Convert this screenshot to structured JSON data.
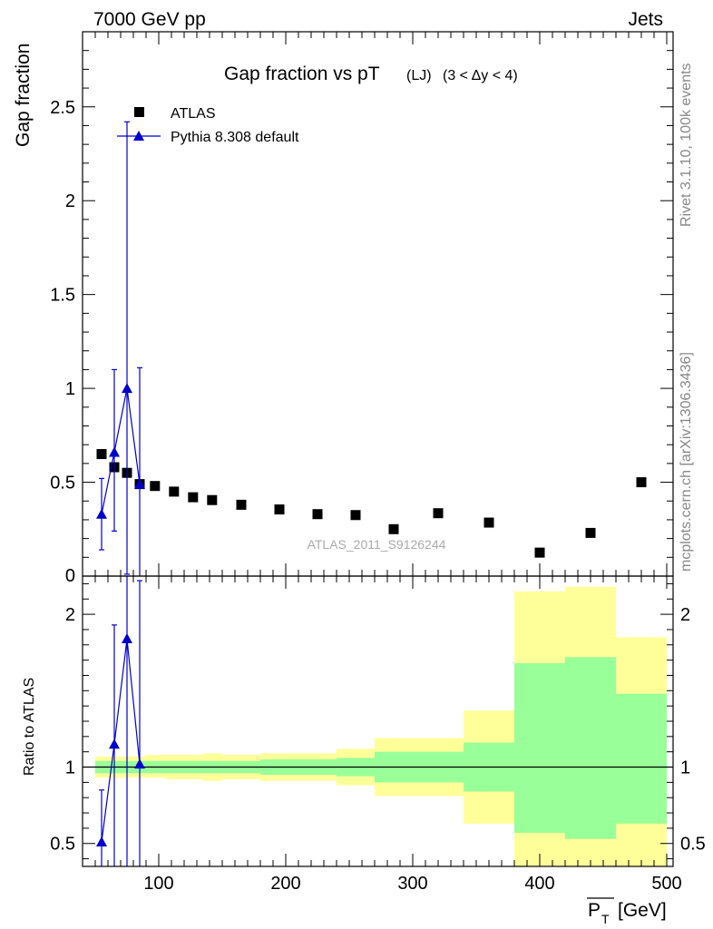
{
  "header": {
    "energy_label": "7000 GeV pp",
    "process_label": "Jets"
  },
  "side_labels": {
    "rivet": "Rivet 3.1.10,  100k events",
    "mcplots": "mcplots.cern.ch [arXiv:1306.3436]"
  },
  "chart_data": [
    {
      "type": "scatter",
      "title": "Gap fraction vs pT",
      "title_sub": "(LJ)",
      "title_range": "(3 < Δy < 4)",
      "ylabel": "Gap fraction",
      "xlim": [
        40,
        505
      ],
      "ylim": [
        0,
        2.9
      ],
      "yticks": [
        0.5,
        1,
        1.5,
        2,
        2.5
      ],
      "yticklabels": [
        "0.5",
        "1",
        "1.5",
        "2",
        "2.5"
      ],
      "y_zero_label": "0",
      "watermark": "ATLAS_2011_S9126244",
      "legend_position": "top-left",
      "series": [
        {
          "name": "ATLAS",
          "marker": "square",
          "color": "#000000",
          "x": [
            55,
            65,
            75,
            85,
            97,
            112,
            127,
            142,
            165,
            195,
            225,
            255,
            285,
            320,
            360,
            400,
            440,
            480
          ],
          "y": [
            0.65,
            0.58,
            0.55,
            0.49,
            0.48,
            0.45,
            0.42,
            0.405,
            0.38,
            0.355,
            0.33,
            0.325,
            0.25,
            0.335,
            0.285,
            0.125,
            0.23,
            0.5
          ]
        },
        {
          "name": "Pythia 8.308 default",
          "marker": "triangle",
          "color": "#0000cc",
          "x": [
            55,
            65,
            75,
            85
          ],
          "y": [
            0.33,
            0.66,
            1.0,
            0.49
          ],
          "err_low": [
            0.19,
            0.42,
            0.99,
            0.49
          ],
          "err_high": [
            0.19,
            0.44,
            1.42,
            0.62
          ]
        }
      ]
    },
    {
      "type": "area",
      "ylabel": "Ratio to ATLAS",
      "xlabel_main": "P",
      "xlabel_sub": "T",
      "xlabel_unit": "[GeV]",
      "xlim": [
        40,
        505
      ],
      "ylim": [
        0.35,
        2.25
      ],
      "xticks": [
        100,
        200,
        300,
        400,
        500
      ],
      "xticklabels": [
        "100",
        "200",
        "300",
        "400",
        "500"
      ],
      "yticks": [
        0.5,
        1,
        2
      ],
      "yticklabels": [
        "0.5",
        "1",
        "2"
      ],
      "reference_line": 1,
      "bands": {
        "bin_edges": [
          50,
          60,
          70,
          80,
          90,
          105,
          120,
          135,
          150,
          180,
          210,
          240,
          270,
          300,
          340,
          380,
          420,
          460,
          500
        ],
        "yellow_low": [
          0.93,
          0.93,
          0.93,
          0.93,
          0.93,
          0.92,
          0.92,
          0.91,
          0.92,
          0.91,
          0.91,
          0.88,
          0.81,
          0.81,
          0.63,
          0.35,
          0.35,
          0.35
        ],
        "yellow_high": [
          1.07,
          1.07,
          1.07,
          1.07,
          1.08,
          1.08,
          1.08,
          1.09,
          1.08,
          1.09,
          1.09,
          1.12,
          1.19,
          1.19,
          1.37,
          2.15,
          2.18,
          1.85
        ],
        "green_low": [
          0.96,
          0.96,
          0.96,
          0.96,
          0.96,
          0.96,
          0.96,
          0.96,
          0.96,
          0.95,
          0.95,
          0.94,
          0.9,
          0.9,
          0.84,
          0.57,
          0.53,
          0.63
        ],
        "green_high": [
          1.04,
          1.04,
          1.04,
          1.04,
          1.04,
          1.04,
          1.04,
          1.04,
          1.04,
          1.05,
          1.05,
          1.06,
          1.1,
          1.1,
          1.16,
          1.68,
          1.72,
          1.48
        ],
        "yellow_color": "#ffff99",
        "green_color": "#99ff99"
      },
      "series": [
        {
          "name": "Pythia 8.308 default",
          "marker": "triangle",
          "color": "#0000cc",
          "x": [
            55,
            65,
            75,
            85
          ],
          "y": [
            0.51,
            1.15,
            1.84,
            1.02
          ],
          "err_low": [
            0.34,
            0.9,
            1.6,
            0.7
          ],
          "err_high": [
            0.34,
            0.78,
            1.6,
            1.2
          ]
        }
      ]
    }
  ]
}
